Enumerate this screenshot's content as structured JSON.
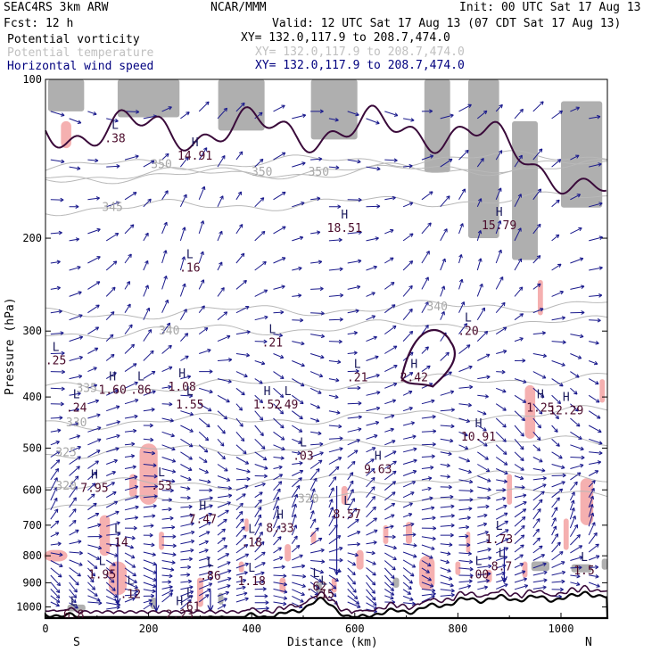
{
  "header": {
    "model": "SEAC4RS  3km ARW",
    "center": "NCAR/MMM",
    "init": "Init: 00 UTC Sat 17 Aug 13",
    "fcst": "Fcst:   12 h",
    "valid": "Valid: 12 UTC Sat 17 Aug 13 (07 CDT Sat 17 Aug 13)",
    "fields": [
      {
        "name": "Potential vorticity",
        "xy": "XY= 132.0,117.9 to 208.7,474.0"
      },
      {
        "name": "Potential temperature",
        "xy": "XY= 132.0,117.9 to 208.7,474.0"
      },
      {
        "name": "Horizontal wind speed",
        "xy": "XY= 132.0,117.9 to 208.7,474.0"
      }
    ]
  },
  "colors": {
    "pv": "#3a0a3a",
    "theta": "#b8b8b8",
    "wind": "#1a1a8c",
    "shade_pink": "#f5b0b0",
    "shade_gray": "#6e6e6e",
    "terrain": "#000000"
  },
  "chart_data": {
    "type": "cross-section",
    "xlabel": "Distance (km)",
    "ylabel": "Pressure (hPa)",
    "x_ticks": [
      0,
      200,
      400,
      600,
      800,
      1000
    ],
    "y_ticks": [
      100,
      200,
      300,
      400,
      500,
      600,
      700,
      800,
      900,
      1000
    ],
    "xlim": [
      0,
      1090
    ],
    "ylim": [
      1050,
      100
    ],
    "y_scale": "log",
    "endpoints": {
      "left": "S",
      "right": "N"
    },
    "theta_contours": [
      {
        "label": "350",
        "x": 225,
        "p": 145
      },
      {
        "label": "350",
        "x": 420,
        "p": 150
      },
      {
        "label": "350",
        "x": 530,
        "p": 150
      },
      {
        "label": "345",
        "x": 130,
        "p": 175
      },
      {
        "label": "340",
        "x": 240,
        "p": 300
      },
      {
        "label": "340",
        "x": 760,
        "p": 270
      },
      {
        "label": "335",
        "x": 80,
        "p": 385
      },
      {
        "label": "330",
        "x": 60,
        "p": 448
      },
      {
        "label": "325",
        "x": 40,
        "p": 510
      },
      {
        "label": "320",
        "x": 40,
        "p": 590
      },
      {
        "label": "320",
        "x": 510,
        "p": 625
      }
    ],
    "hl_labels": [
      {
        "type": "H",
        "value": "14.91",
        "x": 290,
        "p": 135
      },
      {
        "type": "H",
        "value": "18.51",
        "x": 580,
        "p": 185
      },
      {
        "type": "H",
        "value": "15.79",
        "x": 880,
        "p": 183
      },
      {
        "type": "L",
        "value": ".38",
        "x": 135,
        "p": 125
      },
      {
        "type": "L",
        "value": ".16",
        "x": 280,
        "p": 220
      },
      {
        "type": "L",
        "value": ".21",
        "x": 440,
        "p": 305
      },
      {
        "type": "L",
        "value": ".20",
        "x": 820,
        "p": 290
      },
      {
        "type": "L",
        "value": ".25",
        "x": 20,
        "p": 330
      },
      {
        "type": "L",
        "value": ".21",
        "x": 605,
        "p": 355
      },
      {
        "type": "H",
        "value": "2.42",
        "x": 715,
        "p": 355
      },
      {
        "type": "H",
        "value": "1.60",
        "x": 130,
        "p": 375
      },
      {
        "type": "L",
        "value": ".86",
        "x": 185,
        "p": 375
      },
      {
        "type": "H",
        "value": "1.08",
        "x": 265,
        "p": 370
      },
      {
        "type": "L",
        "value": "1.55",
        "x": 280,
        "p": 400
      },
      {
        "type": "H",
        "value": "1.52",
        "x": 430,
        "p": 400
      },
      {
        "type": "L",
        "value": ".49",
        "x": 470,
        "p": 400
      },
      {
        "type": "L",
        "value": ".24",
        "x": 60,
        "p": 405
      },
      {
        "type": "H",
        "value": "1.25",
        "x": 960,
        "p": 405
      },
      {
        "type": "H",
        "value": "12.29",
        "x": 1010,
        "p": 410
      },
      {
        "type": "H",
        "value": "10.91",
        "x": 840,
        "p": 460
      },
      {
        "type": "L",
        "value": ".03",
        "x": 500,
        "p": 500
      },
      {
        "type": "H",
        "value": "9.63",
        "x": 645,
        "p": 530
      },
      {
        "type": "H",
        "value": "7.95",
        "x": 95,
        "p": 575
      },
      {
        "type": "L",
        "value": ".53",
        "x": 225,
        "p": 570
      },
      {
        "type": "H",
        "value": "7.47",
        "x": 305,
        "p": 660
      },
      {
        "type": "L",
        "value": "8.57",
        "x": 585,
        "p": 645
      },
      {
        "type": "H",
        "value": "8.33",
        "x": 455,
        "p": 685
      },
      {
        "type": "L",
        "value": ".14",
        "x": 140,
        "p": 730
      },
      {
        "type": "L",
        "value": ".18",
        "x": 400,
        "p": 730
      },
      {
        "type": "L",
        "value": "1.73",
        "x": 880,
        "p": 720
      },
      {
        "type": "L",
        "value": "1.95",
        "x": 110,
        "p": 840
      },
      {
        "type": "L",
        "value": ".86",
        "x": 320,
        "p": 845
      },
      {
        "type": "L",
        "value": "1.18",
        "x": 400,
        "p": 865
      },
      {
        "type": "L",
        "value": ".00",
        "x": 840,
        "p": 840
      },
      {
        "type": "L",
        "value": "8.7",
        "x": 885,
        "p": 810
      },
      {
        "type": "L",
        "value": ".62",
        "x": 525,
        "p": 885
      },
      {
        "type": "L",
        "value": ".15",
        "x": 540,
        "p": 915
      },
      {
        "type": "L",
        "value": "1.5",
        "x": 1045,
        "p": 825
      },
      {
        "type": "L",
        "value": ".12",
        "x": 165,
        "p": 915
      },
      {
        "type": "L",
        "value": ".61",
        "x": 280,
        "p": 965
      },
      {
        "type": "H",
        "value": "2.23",
        "x": 260,
        "p": 1000
      },
      {
        "type": "L",
        "value": "6.8",
        "x": 55,
        "p": 1000
      }
    ]
  }
}
